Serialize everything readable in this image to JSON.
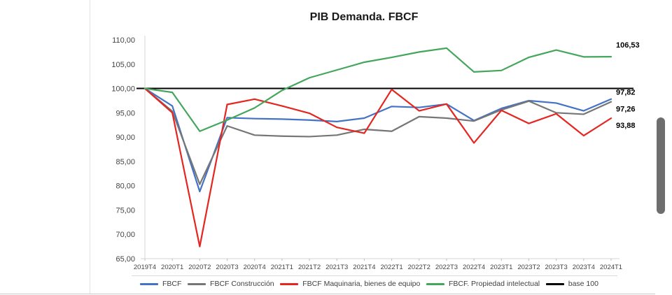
{
  "chart_data": {
    "type": "line",
    "title": "PIB Demanda. FBCF",
    "xlabel": "",
    "ylabel": "",
    "ylim": [
      65,
      110
    ],
    "y_step": 5,
    "grid": false,
    "legend_position": "bottom",
    "y_ticks": [
      "110,00",
      "105,00",
      "100,00",
      "95,00",
      "90,00",
      "85,00",
      "80,00",
      "75,00",
      "70,00",
      "65,00"
    ],
    "categories": [
      "2019T4",
      "2020T1",
      "2020T2",
      "2020T3",
      "2020T4",
      "2021T1",
      "2021T2",
      "2021T3",
      "2021T4",
      "2022T1",
      "2022T2",
      "2022T3",
      "2022T4",
      "2023T1",
      "2023T2",
      "2023T3",
      "2023T4",
      "2024T1"
    ],
    "series": [
      {
        "name": "FBCF",
        "color": "#4472C4",
        "end_label": "97,82",
        "values": [
          100,
          96.4,
          78.8,
          94.0,
          93.8,
          93.7,
          93.5,
          93.2,
          93.9,
          96.3,
          96.1,
          96.8,
          93.4,
          95.9,
          97.5,
          97.0,
          95.4,
          97.82
        ]
      },
      {
        "name": "FBCF Construcción",
        "color": "#767676",
        "end_label": "97,26",
        "values": [
          100,
          95.3,
          80.3,
          92.3,
          90.4,
          90.2,
          90.1,
          90.4,
          91.6,
          91.2,
          94.2,
          93.9,
          93.3,
          95.6,
          97.4,
          95.0,
          94.7,
          97.26
        ]
      },
      {
        "name": "FBCF Maquinaria, bienes de equipo",
        "color": "#E52620",
        "end_label": "93,88",
        "values": [
          100,
          95.0,
          67.5,
          96.7,
          97.8,
          96.4,
          94.9,
          92.0,
          90.8,
          99.8,
          95.4,
          96.8,
          88.8,
          95.5,
          92.8,
          94.8,
          90.3,
          93.88
        ]
      },
      {
        "name": "FBCF. Propiedad intelectual",
        "color": "#44A65B",
        "end_label": "106,53",
        "values": [
          100,
          99.2,
          91.2,
          93.5,
          96.0,
          99.6,
          102.2,
          103.8,
          105.4,
          106.4,
          107.5,
          108.3,
          103.4,
          103.7,
          106.4,
          107.9,
          106.5,
          106.53
        ]
      }
    ],
    "baseline": {
      "name": "base 100",
      "color": "#000000",
      "value": 100
    }
  }
}
